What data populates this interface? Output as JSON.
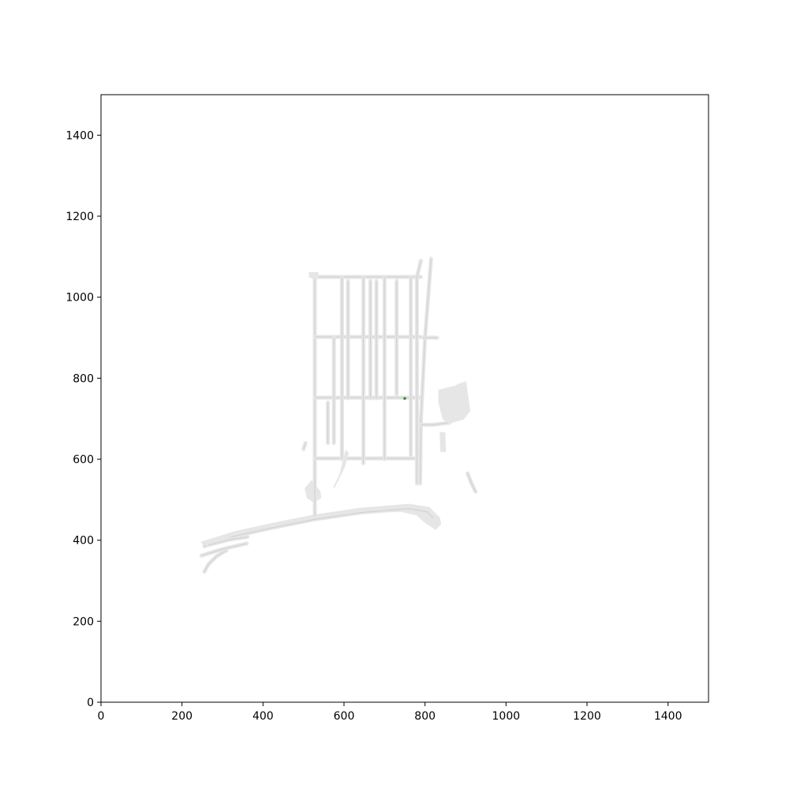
{
  "chart_data": {
    "type": "scatter",
    "title": "",
    "xlabel": "",
    "ylabel": "",
    "xlim": [
      0,
      1500
    ],
    "ylim": [
      0,
      1500
    ],
    "x_ticks": [
      0,
      200,
      400,
      600,
      800,
      1000,
      1200,
      1400
    ],
    "y_ticks": [
      0,
      200,
      400,
      600,
      800,
      1000,
      1200,
      1400
    ],
    "grid": false,
    "background": "road-network map of a port/industrial area",
    "colors": {
      "road_fill": "#e6e6e6",
      "road_lane": "#cfcfcf",
      "axis": "#000000",
      "point": "#2e8b3c"
    },
    "series": [
      {
        "x": [
          750
        ],
        "y": [
          750
        ]
      }
    ],
    "roads": [
      {
        "kind": "fill",
        "points": [
          [
            250,
            395
          ],
          [
            330,
            420
          ],
          [
            420,
            440
          ],
          [
            530,
            462
          ],
          [
            640,
            478
          ],
          [
            760,
            488
          ],
          [
            810,
            480
          ],
          [
            835,
            455
          ],
          [
            838,
            440
          ],
          [
            826,
            428
          ],
          [
            800,
            445
          ],
          [
            780,
            463
          ],
          [
            740,
            472
          ],
          [
            640,
            468
          ],
          [
            530,
            452
          ],
          [
            420,
            430
          ],
          [
            330,
            410
          ],
          [
            255,
            385
          ]
        ]
      },
      {
        "kind": "fill",
        "points": [
          [
            520,
            545
          ],
          [
            540,
            520
          ],
          [
            542,
            505
          ],
          [
            526,
            495
          ],
          [
            510,
            505
          ],
          [
            505,
            528
          ]
        ]
      },
      {
        "kind": "lane",
        "points": [
          [
            255,
            385
          ],
          [
            330,
            410
          ],
          [
            420,
            430
          ],
          [
            530,
            452
          ],
          [
            640,
            468
          ],
          [
            760,
            478
          ],
          [
            805,
            470
          ],
          [
            820,
            455
          ]
        ]
      },
      {
        "kind": "lane",
        "points": [
          [
            248,
            362
          ],
          [
            300,
            378
          ],
          [
            360,
            392
          ]
        ]
      },
      {
        "kind": "lane",
        "points": [
          [
            255,
            322
          ],
          [
            265,
            340
          ],
          [
            285,
            360
          ],
          [
            310,
            375
          ]
        ]
      },
      {
        "kind": "lane",
        "points": [
          [
            265,
            388
          ],
          [
            320,
            402
          ],
          [
            362,
            408
          ]
        ]
      },
      {
        "kind": "lane",
        "points": [
          [
            528,
            460
          ],
          [
            528,
            1050
          ]
        ]
      },
      {
        "kind": "lane",
        "points": [
          [
            524,
            1050
          ],
          [
            790,
            1050
          ]
        ]
      },
      {
        "kind": "lane",
        "points": [
          [
            528,
            902
          ],
          [
            790,
            902
          ]
        ]
      },
      {
        "kind": "lane",
        "points": [
          [
            528,
            752
          ],
          [
            790,
            752
          ]
        ]
      },
      {
        "kind": "lane",
        "points": [
          [
            528,
            602
          ],
          [
            790,
            602
          ]
        ]
      },
      {
        "kind": "lane",
        "points": [
          [
            595,
            600
          ],
          [
            595,
            1050
          ]
        ]
      },
      {
        "kind": "lane",
        "points": [
          [
            648,
            590
          ],
          [
            648,
            1050
          ]
        ]
      },
      {
        "kind": "lane",
        "points": [
          [
            700,
            600
          ],
          [
            700,
            1050
          ]
        ]
      },
      {
        "kind": "lane",
        "points": [
          [
            765,
            610
          ],
          [
            765,
            1050
          ]
        ]
      },
      {
        "kind": "lane",
        "points": [
          [
            560,
            640
          ],
          [
            560,
            740
          ]
        ]
      },
      {
        "kind": "lane",
        "points": [
          [
            575,
            640
          ],
          [
            575,
            900
          ]
        ]
      },
      {
        "kind": "lane",
        "points": [
          [
            610,
            750
          ],
          [
            610,
            1040
          ]
        ]
      },
      {
        "kind": "lane",
        "points": [
          [
            665,
            750
          ],
          [
            665,
            1040
          ]
        ]
      },
      {
        "kind": "lane",
        "points": [
          [
            680,
            750
          ],
          [
            680,
            1040
          ]
        ]
      },
      {
        "kind": "lane",
        "points": [
          [
            730,
            760
          ],
          [
            730,
            1040
          ]
        ]
      },
      {
        "kind": "lane",
        "points": [
          [
            780,
            540
          ],
          [
            780,
            1050
          ],
          [
            790,
            1090
          ]
        ]
      },
      {
        "kind": "lane",
        "points": [
          [
            788,
            540
          ],
          [
            790,
            700
          ],
          [
            800,
            900
          ],
          [
            815,
            1095
          ]
        ]
      },
      {
        "kind": "lane",
        "points": [
          [
            795,
            900
          ],
          [
            830,
            900
          ]
        ]
      },
      {
        "kind": "lane",
        "points": [
          [
            790,
            685
          ],
          [
            820,
            685
          ],
          [
            860,
            690
          ]
        ]
      },
      {
        "kind": "lane",
        "points": [
          [
            860,
            690
          ],
          [
            880,
            705
          ]
        ]
      },
      {
        "kind": "fill",
        "points": [
          [
            835,
            770
          ],
          [
            875,
            780
          ],
          [
            885,
            785
          ],
          [
            900,
            790
          ],
          [
            910,
            720
          ],
          [
            895,
            700
          ],
          [
            860,
            690
          ],
          [
            845,
            700
          ],
          [
            835,
            740
          ]
        ]
      },
      {
        "kind": "fill",
        "points": [
          [
            840,
            620
          ],
          [
            850,
            620
          ],
          [
            848,
            665
          ],
          [
            838,
            665
          ]
        ]
      },
      {
        "kind": "lane",
        "points": [
          [
            905,
            565
          ],
          [
            915,
            540
          ],
          [
            925,
            520
          ]
        ]
      },
      {
        "kind": "fill",
        "points": [
          [
            515,
            1060
          ],
          [
            535,
            1060
          ],
          [
            535,
            1050
          ],
          [
            515,
            1050
          ]
        ]
      },
      {
        "kind": "fill",
        "points": [
          [
            575,
            530
          ],
          [
            590,
            560
          ],
          [
            600,
            600
          ],
          [
            605,
            620
          ],
          [
            610,
            615
          ],
          [
            600,
            580
          ]
        ]
      },
      {
        "kind": "lane",
        "points": [
          [
            500,
            625
          ],
          [
            505,
            640
          ]
        ]
      }
    ]
  }
}
